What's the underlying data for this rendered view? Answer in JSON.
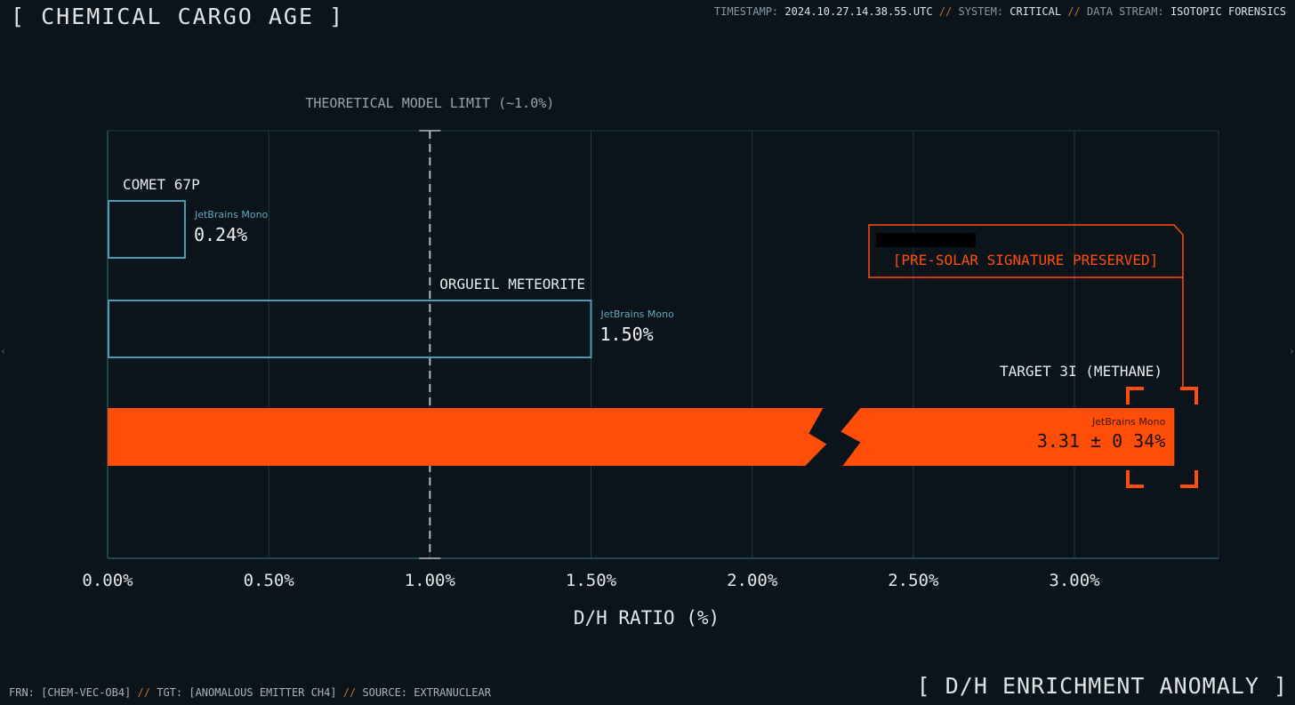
{
  "header": {
    "title": "[ CHEMICAL CARGO AGE ]",
    "status": {
      "timestamp_label": "TIMESTAMP:",
      "timestamp_value": "2024.10.27.14.38.55.UTC",
      "system_label": "SYSTEM:",
      "system_value": "CRITICAL",
      "stream_label": "DATA STREAM:",
      "stream_value": "ISOTOPIC FORENSICS",
      "separator": "//"
    }
  },
  "footer": {
    "frn_label": "FRN:",
    "frn_value": "[CHEM-VEC-OB4]",
    "tgt_label": "TGT:",
    "tgt_value": "[ANOMALOUS EMITTER CH4]",
    "source_label": "SOURCE:",
    "source_value": "EXTRANUCLEAR",
    "separator": "//",
    "anomaly_label": "[ D/H ENRICHMENT ANOMALY ]"
  },
  "chart_data": {
    "type": "bar",
    "orientation": "horizontal",
    "xlabel": "D/H RATIO (%)",
    "ylabel": "",
    "xlim": [
      0,
      3.43
    ],
    "xticks": [
      0.0,
      0.5,
      1.0,
      1.5,
      2.0,
      2.5,
      3.0
    ],
    "xtick_labels": [
      "0.00%",
      "0.50%",
      "1.00%",
      "1.50%",
      "2.00%",
      "2.50%",
      "3.00%"
    ],
    "grid": true,
    "series": [
      {
        "category": "COMET 67P",
        "value": 0.24,
        "value_label": "0.24%",
        "font_note": "JetBrains Mono",
        "style": "outline",
        "color": "#4a9bb0"
      },
      {
        "category": "ORGUEIL METEORITE",
        "value": 1.5,
        "value_label": "1.50%",
        "font_note": "JetBrains Mono",
        "style": "outline",
        "color": "#4a9bb0"
      },
      {
        "category": "TARGET 3I (METHANE)",
        "value": 3.31,
        "error": 0.34,
        "value_label": "3.31 ± 0.34%",
        "font_note": "JetBrains Mono",
        "style": "filled",
        "color": "#ff4d0a",
        "axis_break": true
      }
    ],
    "reference_line": {
      "value": 1.0,
      "label": "THEORETICAL MODEL LIMIT (~1.0%)",
      "style": "dashed",
      "color": "#b8b8b8"
    },
    "callout": {
      "text": "[PRE-SOLAR SIGNATURE PRESERVED]",
      "redacted": true,
      "color": "#ff4d0a"
    }
  },
  "colors": {
    "background": "#0b141b",
    "grid": "#1d3a45",
    "accent": "#ff4d0a",
    "outline": "#4a9bb0",
    "separator": "#c9701f"
  }
}
